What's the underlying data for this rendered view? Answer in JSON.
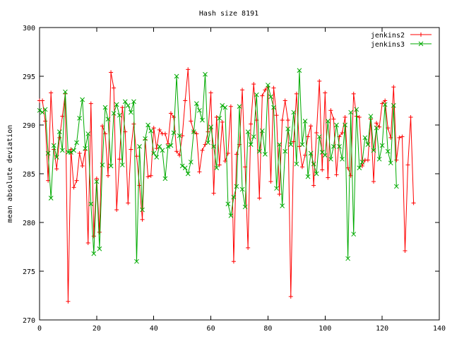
{
  "chart_data": {
    "type": "line",
    "title": "Hash size 8191",
    "xlabel": "",
    "ylabel": "mean absolute deviation",
    "xlim": [
      0,
      140
    ],
    "ylim": [
      270,
      300
    ],
    "xticks": [
      0,
      20,
      40,
      60,
      80,
      100,
      120,
      140
    ],
    "yticks": [
      270,
      275,
      280,
      285,
      290,
      295,
      300
    ],
    "grid": false,
    "legend": "top-right",
    "series": [
      {
        "name": "jenkins2",
        "color": "#ff0000",
        "marker": "plus",
        "values": [
          292.5,
          292.5,
          290.4,
          284.3,
          293.3,
          287.5,
          285.5,
          288.7,
          290.9,
          293.2,
          271.9,
          287.5,
          283.6,
          284.3,
          287.1,
          285.8,
          287.4,
          277.9,
          292.2,
          278.6,
          284.5,
          279.0,
          289.9,
          289.1,
          284.8,
          295.4,
          293.8,
          281.3,
          286.5,
          291.8,
          289.3,
          282.0,
          287.5,
          290.1,
          286.8,
          283.8,
          280.3,
          288.5,
          284.7,
          284.8,
          289.7,
          287.6,
          289.5,
          289.1,
          289.1,
          288.1,
          291.2,
          290.8,
          287.3,
          286.9,
          288.9,
          292.5,
          295.7,
          290.4,
          289.3,
          289.1,
          285.2,
          287.4,
          288.0,
          289.3,
          293.3,
          283.0,
          290.8,
          285.9,
          290.3,
          286.3,
          287.1,
          291.9,
          276.0,
          287.0,
          288.0,
          293.6,
          285.7,
          277.4,
          290.1,
          294.2,
          290.5,
          282.5,
          293.0,
          293.6,
          293.9,
          284.2,
          293.8,
          291.0,
          282.9,
          290.5,
          292.5,
          290.5,
          272.4,
          288.3,
          293.2,
          287.8,
          285.7,
          286.9,
          288.8,
          289.9,
          283.8,
          289.2,
          294.5,
          285.4,
          293.3,
          284.6,
          291.5,
          290.6,
          284.9,
          288.8,
          289.2,
          290.8,
          285.6,
          284.8,
          293.2,
          290.9,
          290.8,
          285.8,
          286.4,
          286.4,
          290.6,
          284.2,
          290.2,
          289.8,
          292.2,
          292.5,
          289.7,
          288.7,
          293.9,
          286.4,
          288.7,
          288.8,
          277.1,
          285.9,
          290.8,
          282.0
        ]
      },
      {
        "name": "jenkins3",
        "color": "#00aa00",
        "marker": "x",
        "values": [
          291.5,
          291.3,
          291.6,
          287.1,
          282.5,
          287.9,
          286.7,
          289.3,
          287.4,
          293.4,
          287.2,
          287.2,
          287.4,
          288.2,
          290.7,
          292.6,
          287.6,
          289.1,
          281.9,
          276.8,
          284.2,
          277.3,
          285.9,
          291.8,
          290.6,
          285.8,
          291.2,
          292.1,
          291.0,
          285.9,
          292.4,
          292.0,
          291.3,
          292.4,
          276.0,
          287.8,
          281.3,
          288.6,
          290.0,
          289.4,
          287.1,
          286.7,
          287.8,
          287.4,
          284.5,
          287.8,
          287.9,
          289.2,
          295.0,
          288.9,
          285.8,
          285.6,
          285.0,
          286.2,
          289.3,
          292.2,
          291.5,
          290.5,
          295.2,
          288.2,
          289.8,
          287.8,
          285.6,
          290.7,
          292.0,
          291.8,
          281.9,
          280.7,
          282.6,
          283.7,
          291.9,
          283.4,
          281.6,
          289.3,
          288.0,
          288.8,
          293.1,
          287.3,
          289.4,
          287.0,
          294.1,
          292.9,
          291.8,
          283.5,
          288.0,
          281.7,
          287.3,
          289.6,
          288.0,
          291.3,
          286.0,
          295.6,
          288.0,
          290.4,
          284.7,
          287.1,
          286.0,
          285.0,
          288.8,
          287.2,
          286.9,
          290.4,
          286.5,
          287.8,
          290.0,
          287.8,
          286.5,
          290.0,
          276.3,
          291.3,
          278.8,
          291.6,
          285.6,
          286.2,
          288.7,
          288.0,
          290.9,
          287.4,
          289.7,
          286.5,
          287.9,
          292.1,
          287.3,
          286.1,
          292.0,
          283.7
        ]
      }
    ]
  }
}
